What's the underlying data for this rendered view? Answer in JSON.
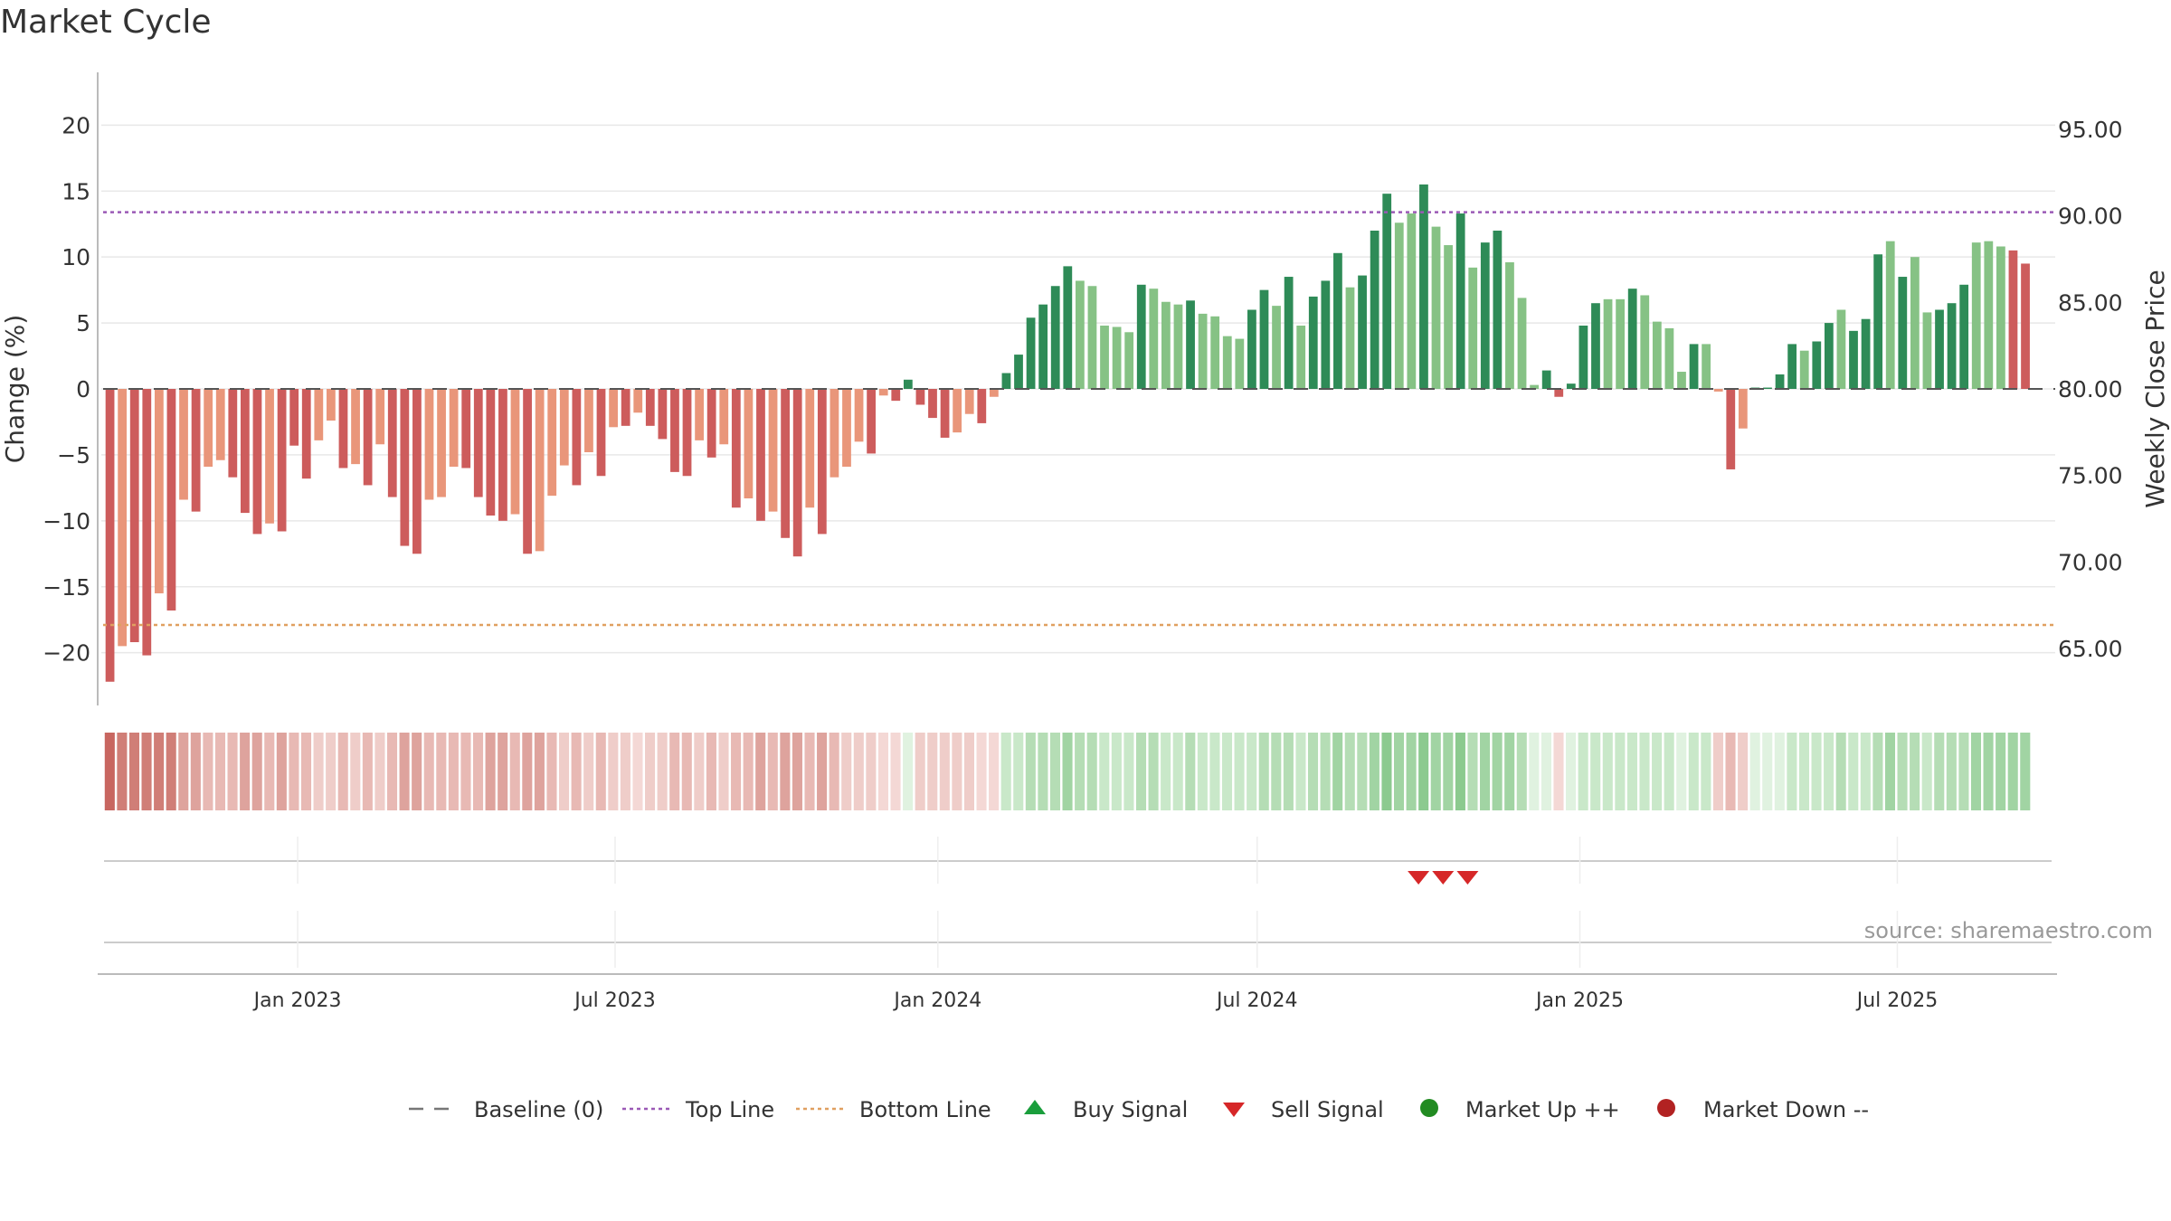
{
  "title": "Market Cycle",
  "source": "source: sharemaestro.com",
  "colors": {
    "strong_up": "#2e8b57",
    "mild_up": "#86c285",
    "strong_down": "#cd5c5c",
    "mild_down": "#e9967a",
    "top_line": "#9b59b6",
    "bottom_line": "#e0a060",
    "baseline": "#555555",
    "sell_marker": "#d62728",
    "buy_marker": "#1a9e3c",
    "market_up": "#228b22",
    "market_down": "#b22222"
  },
  "legend": [
    {
      "label": "Baseline (0)",
      "icon": "dash-line-icon",
      "color": "#777777"
    },
    {
      "label": "Top Line",
      "icon": "dotted-line-icon",
      "color": "#9b59b6"
    },
    {
      "label": "Bottom Line",
      "icon": "dotted-line-icon",
      "color": "#e0a060"
    },
    {
      "label": "Buy Signal",
      "icon": "triangle-up-icon",
      "color": "#1a9e3c"
    },
    {
      "label": "Sell Signal",
      "icon": "triangle-down-icon",
      "color": "#d62728"
    },
    {
      "label": "Market Up ++",
      "icon": "circle-icon",
      "color": "#228b22"
    },
    {
      "label": "Market Down --",
      "icon": "circle-icon",
      "color": "#b22222"
    }
  ],
  "chart_data": {
    "type": "bar",
    "title": "Market Cycle",
    "ylabel": "Change (%)",
    "y2label": "Weekly Close Price",
    "ylim": [
      -24,
      24
    ],
    "yticks": [
      20,
      15,
      10,
      5,
      0,
      -5,
      -10,
      -15,
      -20
    ],
    "ytick_labels": [
      "20",
      "15",
      "10",
      "5",
      "0",
      "−5",
      "−10",
      "−15",
      "−20"
    ],
    "y2lim": [
      61.7,
      98.3
    ],
    "y2ticks": [
      95,
      90,
      85,
      80,
      75,
      70,
      65
    ],
    "y2tick_labels": [
      "95.00",
      "90.00",
      "85.00",
      "80.00",
      "75.00",
      "70.00",
      "65.00"
    ],
    "xlim": [
      "2022-09-09",
      "2025-09-29"
    ],
    "xtick_labels": [
      {
        "date": "2023-01-01",
        "label": "Jan 2023"
      },
      {
        "date": "2023-07-01",
        "label": "Jul 2023"
      },
      {
        "date": "2024-01-01",
        "label": "Jan 2024"
      },
      {
        "date": "2024-07-01",
        "label": "Jul 2024"
      },
      {
        "date": "2025-01-01",
        "label": "Jan 2025"
      },
      {
        "date": "2025-07-01",
        "label": "Jul 2025"
      }
    ],
    "top_line": 13.4,
    "bottom_line": -17.9,
    "first_week": "2022-09-16",
    "weekly_change": [
      -22.2,
      -19.5,
      -19.2,
      -20.2,
      -15.5,
      -16.8,
      -8.4,
      -9.3,
      -5.9,
      -5.4,
      -6.7,
      -9.4,
      -11.0,
      -10.2,
      -10.8,
      -4.3,
      -6.8,
      -3.9,
      -2.4,
      -6.0,
      -5.7,
      -7.3,
      -4.2,
      -8.2,
      -11.9,
      -12.5,
      -8.4,
      -8.2,
      -5.9,
      -6.0,
      -8.2,
      -9.6,
      -10.0,
      -9.5,
      -12.5,
      -12.3,
      -8.1,
      -5.8,
      -7.3,
      -4.8,
      -6.6,
      -2.9,
      -2.8,
      -1.8,
      -2.8,
      -3.8,
      -6.3,
      -6.6,
      -3.9,
      -5.2,
      -4.2,
      -9.0,
      -8.3,
      -10.0,
      -9.3,
      -11.3,
      -12.7,
      -9.0,
      -11.0,
      -6.7,
      -5.9,
      -4.0,
      -4.9,
      -0.5,
      -0.9,
      0.7,
      -1.2,
      -2.2,
      -3.7,
      -3.3,
      -1.9,
      -2.6,
      -0.6,
      1.2,
      2.6,
      5.4,
      6.4,
      7.8,
      9.3,
      8.2,
      7.8,
      4.8,
      4.7,
      4.3,
      7.9,
      7.6,
      6.6,
      6.4,
      6.7,
      5.7,
      5.5,
      4.0,
      3.8,
      6.0,
      7.5,
      6.3,
      8.5,
      4.8,
      7.0,
      8.2,
      10.3,
      7.7,
      8.6,
      12.0,
      14.8,
      12.6,
      13.3,
      15.5,
      12.3,
      10.9,
      13.3,
      9.2,
      11.1,
      12.0,
      9.6,
      6.9,
      0.3,
      1.4,
      -0.6,
      0.4,
      4.8,
      6.5,
      6.8,
      6.8,
      7.6,
      7.1,
      5.1,
      4.6,
      1.3,
      3.4,
      3.4,
      -0.2,
      -6.1,
      -3.0,
      0.1,
      0.1,
      1.1,
      3.4,
      2.9,
      3.6,
      5.0,
      6.0,
      4.4,
      5.3,
      10.2,
      11.2,
      8.5,
      10.0,
      5.8,
      6.0,
      6.5,
      7.9,
      11.1,
      11.2,
      10.8,
      10.5,
      9.5
    ],
    "weekly_class": [
      -2,
      -1,
      -2,
      -2,
      -1,
      -2,
      -1,
      -2,
      -1,
      -1,
      -2,
      -2,
      -2,
      -1,
      -2,
      -2,
      -2,
      -1,
      -1,
      -2,
      -1,
      -2,
      -1,
      -2,
      -2,
      -2,
      -1,
      -1,
      -1,
      -2,
      -2,
      -2,
      -2,
      -1,
      -2,
      -1,
      -1,
      -1,
      -2,
      -1,
      -2,
      -1,
      -2,
      -1,
      -2,
      -2,
      -2,
      -2,
      -1,
      -2,
      -1,
      -2,
      -1,
      -2,
      -1,
      -2,
      -2,
      -1,
      -2,
      -1,
      -1,
      -1,
      -2,
      -1,
      -2,
      2,
      -2,
      -2,
      -2,
      -1,
      -1,
      -2,
      -1,
      2,
      2,
      2,
      2,
      2,
      2,
      1,
      1,
      1,
      1,
      1,
      2,
      1,
      1,
      1,
      2,
      1,
      1,
      1,
      1,
      2,
      2,
      1,
      2,
      1,
      2,
      2,
      2,
      1,
      2,
      2,
      2,
      1,
      1,
      2,
      1,
      1,
      2,
      1,
      2,
      2,
      1,
      1,
      1,
      2,
      -2,
      2,
      2,
      2,
      1,
      1,
      2,
      1,
      1,
      1,
      1,
      2,
      1,
      -1,
      -2,
      -1,
      2,
      2,
      2,
      2,
      1,
      2,
      2,
      1,
      2,
      2,
      2,
      1,
      2,
      1,
      1,
      2,
      2,
      2,
      1,
      1,
      1
    ],
    "heat_strength": [
      5,
      4,
      4,
      4,
      4,
      4,
      3,
      3,
      2,
      2,
      2,
      3,
      3,
      2,
      3,
      2,
      2,
      1,
      1,
      2,
      1,
      2,
      1,
      2,
      3,
      3,
      2,
      2,
      2,
      2,
      2,
      3,
      3,
      2,
      3,
      3,
      2,
      1,
      2,
      1,
      2,
      1,
      1,
      0,
      1,
      1,
      2,
      2,
      1,
      2,
      1,
      2,
      2,
      3,
      2,
      3,
      3,
      2,
      3,
      2,
      1,
      1,
      1,
      0,
      0,
      0,
      1,
      1,
      1,
      1,
      1,
      0,
      0,
      1,
      1,
      2,
      2,
      2,
      3,
      2,
      2,
      1,
      1,
      1,
      2,
      2,
      1,
      1,
      2,
      1,
      1,
      1,
      1,
      1,
      2,
      2,
      2,
      1,
      2,
      2,
      3,
      2,
      2,
      3,
      4,
      3,
      3,
      4,
      3,
      3,
      4,
      2,
      3,
      3,
      3,
      2,
      0,
      0,
      0,
      0,
      1,
      1,
      1,
      1,
      1,
      1,
      1,
      1,
      0,
      1,
      1,
      1,
      2,
      1,
      0,
      0,
      0,
      1,
      1,
      1,
      1,
      2,
      1,
      1,
      2,
      3,
      2,
      2,
      1,
      2,
      2,
      2,
      3,
      3,
      3,
      3,
      3
    ],
    "sell_signals": [
      "2024-10-01",
      "2024-10-15",
      "2024-10-29"
    ],
    "buy_signals": []
  }
}
